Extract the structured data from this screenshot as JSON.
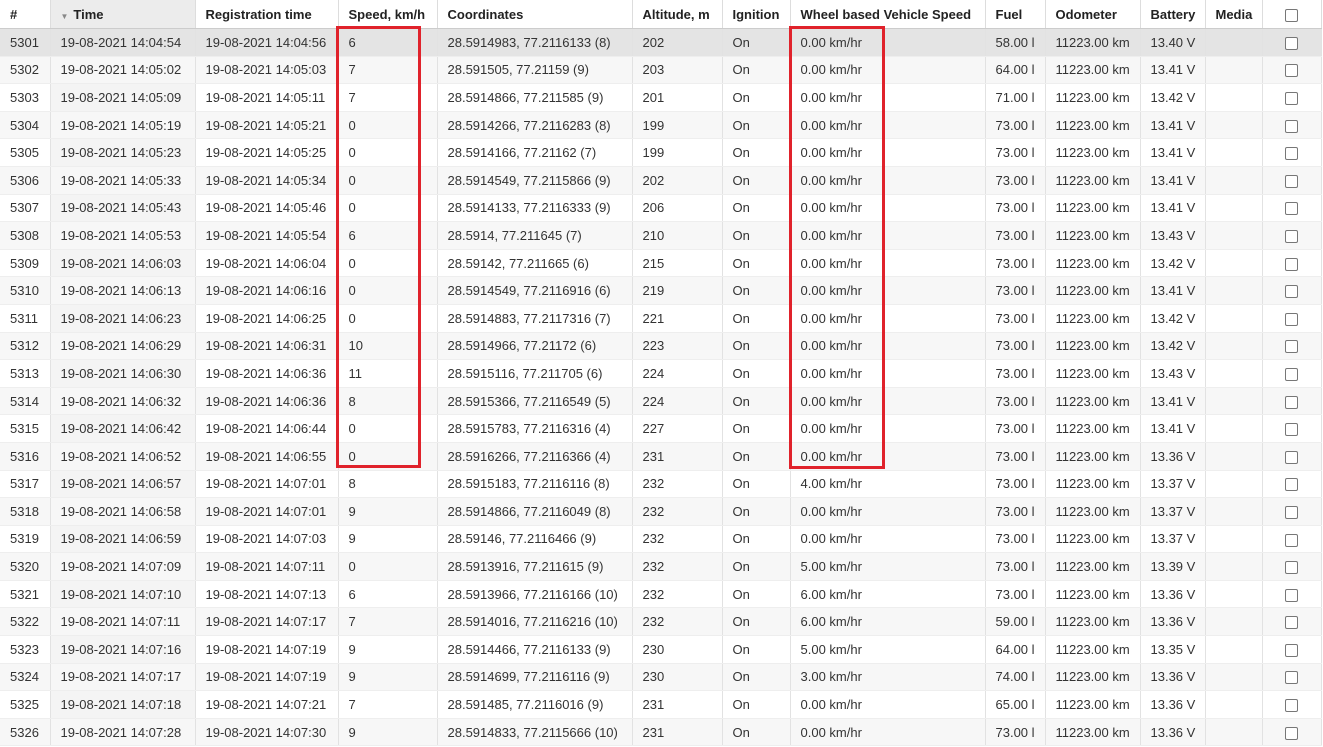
{
  "columns": [
    "#",
    "Time",
    "Registration time",
    "Speed, km/h",
    "Coordinates",
    "Altitude, m",
    "Ignition",
    "Wheel based Vehicle Speed",
    "Fuel",
    "Odometer",
    "Battery",
    "Media"
  ],
  "sorted_column": "Time",
  "highlight_color": "#e0222b",
  "rows": [
    [
      "5301",
      "19-08-2021 14:04:54",
      "19-08-2021 14:04:56",
      "6",
      "28.5914983, 77.2116133 (8)",
      "202",
      "On",
      "0.00 km/hr",
      "58.00 l",
      "11223.00 km",
      "13.40 V",
      ""
    ],
    [
      "5302",
      "19-08-2021 14:05:02",
      "19-08-2021 14:05:03",
      "7",
      "28.591505, 77.21159 (9)",
      "203",
      "On",
      "0.00 km/hr",
      "64.00 l",
      "11223.00 km",
      "13.41 V",
      ""
    ],
    [
      "5303",
      "19-08-2021 14:05:09",
      "19-08-2021 14:05:11",
      "7",
      "28.5914866, 77.211585 (9)",
      "201",
      "On",
      "0.00 km/hr",
      "71.00 l",
      "11223.00 km",
      "13.42 V",
      ""
    ],
    [
      "5304",
      "19-08-2021 14:05:19",
      "19-08-2021 14:05:21",
      "0",
      "28.5914266, 77.2116283 (8)",
      "199",
      "On",
      "0.00 km/hr",
      "73.00 l",
      "11223.00 km",
      "13.41 V",
      ""
    ],
    [
      "5305",
      "19-08-2021 14:05:23",
      "19-08-2021 14:05:25",
      "0",
      "28.5914166, 77.21162 (7)",
      "199",
      "On",
      "0.00 km/hr",
      "73.00 l",
      "11223.00 km",
      "13.41 V",
      ""
    ],
    [
      "5306",
      "19-08-2021 14:05:33",
      "19-08-2021 14:05:34",
      "0",
      "28.5914549, 77.2115866 (9)",
      "202",
      "On",
      "0.00 km/hr",
      "73.00 l",
      "11223.00 km",
      "13.41 V",
      ""
    ],
    [
      "5307",
      "19-08-2021 14:05:43",
      "19-08-2021 14:05:46",
      "0",
      "28.5914133, 77.2116333 (9)",
      "206",
      "On",
      "0.00 km/hr",
      "73.00 l",
      "11223.00 km",
      "13.41 V",
      ""
    ],
    [
      "5308",
      "19-08-2021 14:05:53",
      "19-08-2021 14:05:54",
      "6",
      "28.5914, 77.211645 (7)",
      "210",
      "On",
      "0.00 km/hr",
      "73.00 l",
      "11223.00 km",
      "13.43 V",
      ""
    ],
    [
      "5309",
      "19-08-2021 14:06:03",
      "19-08-2021 14:06:04",
      "0",
      "28.59142, 77.211665 (6)",
      "215",
      "On",
      "0.00 km/hr",
      "73.00 l",
      "11223.00 km",
      "13.42 V",
      ""
    ],
    [
      "5310",
      "19-08-2021 14:06:13",
      "19-08-2021 14:06:16",
      "0",
      "28.5914549, 77.2116916 (6)",
      "219",
      "On",
      "0.00 km/hr",
      "73.00 l",
      "11223.00 km",
      "13.41 V",
      ""
    ],
    [
      "5311",
      "19-08-2021 14:06:23",
      "19-08-2021 14:06:25",
      "0",
      "28.5914883, 77.2117316 (7)",
      "221",
      "On",
      "0.00 km/hr",
      "73.00 l",
      "11223.00 km",
      "13.42 V",
      ""
    ],
    [
      "5312",
      "19-08-2021 14:06:29",
      "19-08-2021 14:06:31",
      "10",
      "28.5914966, 77.21172 (6)",
      "223",
      "On",
      "0.00 km/hr",
      "73.00 l",
      "11223.00 km",
      "13.42 V",
      ""
    ],
    [
      "5313",
      "19-08-2021 14:06:30",
      "19-08-2021 14:06:36",
      "11",
      "28.5915116, 77.211705 (6)",
      "224",
      "On",
      "0.00 km/hr",
      "73.00 l",
      "11223.00 km",
      "13.43 V",
      ""
    ],
    [
      "5314",
      "19-08-2021 14:06:32",
      "19-08-2021 14:06:36",
      "8",
      "28.5915366, 77.2116549 (5)",
      "224",
      "On",
      "0.00 km/hr",
      "73.00 l",
      "11223.00 km",
      "13.41 V",
      ""
    ],
    [
      "5315",
      "19-08-2021 14:06:42",
      "19-08-2021 14:06:44",
      "0",
      "28.5915783, 77.2116316 (4)",
      "227",
      "On",
      "0.00 km/hr",
      "73.00 l",
      "11223.00 km",
      "13.41 V",
      ""
    ],
    [
      "5316",
      "19-08-2021 14:06:52",
      "19-08-2021 14:06:55",
      "0",
      "28.5916266, 77.2116366 (4)",
      "231",
      "On",
      "0.00 km/hr",
      "73.00 l",
      "11223.00 km",
      "13.36 V",
      ""
    ],
    [
      "5317",
      "19-08-2021 14:06:57",
      "19-08-2021 14:07:01",
      "8",
      "28.5915183, 77.2116116 (8)",
      "232",
      "On",
      "4.00 km/hr",
      "73.00 l",
      "11223.00 km",
      "13.37 V",
      ""
    ],
    [
      "5318",
      "19-08-2021 14:06:58",
      "19-08-2021 14:07:01",
      "9",
      "28.5914866, 77.2116049 (8)",
      "232",
      "On",
      "0.00 km/hr",
      "73.00 l",
      "11223.00 km",
      "13.37 V",
      ""
    ],
    [
      "5319",
      "19-08-2021 14:06:59",
      "19-08-2021 14:07:03",
      "9",
      "28.59146, 77.2116466 (9)",
      "232",
      "On",
      "0.00 km/hr",
      "73.00 l",
      "11223.00 km",
      "13.37 V",
      ""
    ],
    [
      "5320",
      "19-08-2021 14:07:09",
      "19-08-2021 14:07:11",
      "0",
      "28.5913916, 77.211615 (9)",
      "232",
      "On",
      "5.00 km/hr",
      "73.00 l",
      "11223.00 km",
      "13.39 V",
      ""
    ],
    [
      "5321",
      "19-08-2021 14:07:10",
      "19-08-2021 14:07:13",
      "6",
      "28.5913966, 77.2116166 (10)",
      "232",
      "On",
      "6.00 km/hr",
      "73.00 l",
      "11223.00 km",
      "13.36 V",
      ""
    ],
    [
      "5322",
      "19-08-2021 14:07:11",
      "19-08-2021 14:07:17",
      "7",
      "28.5914016, 77.2116216 (10)",
      "232",
      "On",
      "6.00 km/hr",
      "59.00 l",
      "11223.00 km",
      "13.36 V",
      ""
    ],
    [
      "5323",
      "19-08-2021 14:07:16",
      "19-08-2021 14:07:19",
      "9",
      "28.5914466, 77.2116133 (9)",
      "230",
      "On",
      "5.00 km/hr",
      "64.00 l",
      "11223.00 km",
      "13.35 V",
      ""
    ],
    [
      "5324",
      "19-08-2021 14:07:17",
      "19-08-2021 14:07:19",
      "9",
      "28.5914699, 77.2116116 (9)",
      "230",
      "On",
      "3.00 km/hr",
      "74.00 l",
      "11223.00 km",
      "13.36 V",
      ""
    ],
    [
      "5325",
      "19-08-2021 14:07:18",
      "19-08-2021 14:07:21",
      "7",
      "28.591485, 77.2116016 (9)",
      "231",
      "On",
      "0.00 km/hr",
      "65.00 l",
      "11223.00 km",
      "13.36 V",
      ""
    ],
    [
      "5326",
      "19-08-2021 14:07:28",
      "19-08-2021 14:07:30",
      "9",
      "28.5914833, 77.2115666 (10)",
      "231",
      "On",
      "0.00 km/hr",
      "73.00 l",
      "11223.00 km",
      "13.36 V",
      ""
    ]
  ]
}
